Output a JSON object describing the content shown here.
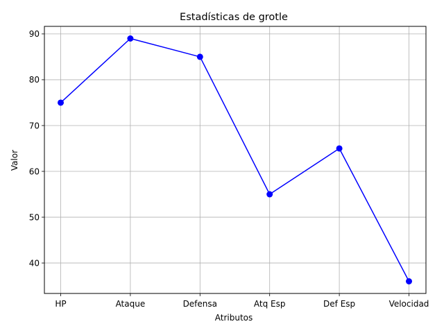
{
  "chart_data": {
    "type": "line",
    "title": "Estadísticas de grotle",
    "xlabel": "Atributos",
    "ylabel": "Valor",
    "categories": [
      "HP",
      "Ataque",
      "Defensa",
      "Atq Esp",
      "Def Esp",
      "Velocidad"
    ],
    "series": [
      {
        "values": [
          75,
          89,
          85,
          55,
          65,
          36
        ]
      }
    ],
    "yticks": [
      40,
      50,
      60,
      70,
      80,
      90
    ],
    "ylim": [
      33.35,
      91.65
    ],
    "grid": true,
    "line_color": "#0000ff",
    "marker": "circle"
  }
}
